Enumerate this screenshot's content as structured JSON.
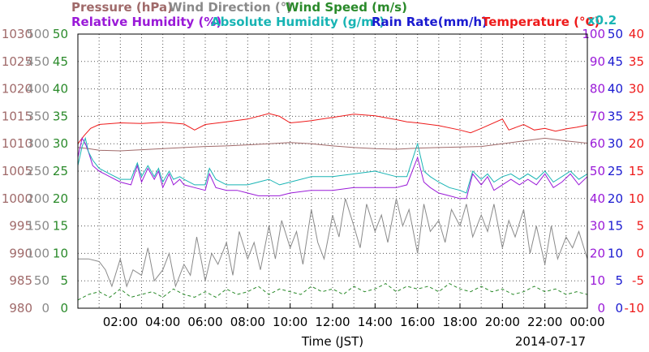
{
  "chart_data": {
    "type": "line",
    "title_lines": [
      [
        {
          "text": "Pressure (hPa)",
          "color": "#a06a6a"
        },
        {
          "text": "Wind Direction (°)",
          "color": "#8a8a8a"
        },
        {
          "text": "Wind Speed (m/s)",
          "color": "#2a8a2a"
        }
      ],
      [
        {
          "text": "Relative Humidity (%)",
          "color": "#9a1ad8"
        },
        {
          "text": "Absolute Humidity (g/m³)",
          "color": "#18b4b4"
        },
        {
          "text": "Rain Rate(mm/h)",
          "color": "#1a1ad0"
        },
        {
          "text": "Temperature (°C)",
          "color": "#ee1a1a"
        }
      ]
    ],
    "abs_humidity_scale_note": "x0.2",
    "xlabel": "Time (JST)",
    "date": "2014-07-17",
    "x_ticks": [
      "02:00",
      "04:00",
      "06:00",
      "08:00",
      "10:00",
      "12:00",
      "14:00",
      "16:00",
      "18:00",
      "20:00",
      "22:00",
      "00:00"
    ],
    "xlim_hours": [
      0,
      24
    ],
    "axes": {
      "pressure": {
        "color": "#a06a6a",
        "range": [
          980,
          1030
        ],
        "ticks": [
          "1030",
          "1025",
          "1020",
          "1015",
          "1010",
          "1005",
          "1000",
          "995",
          "990",
          "985",
          "980"
        ]
      },
      "wind_direction": {
        "color": "#8a8a8a",
        "range": [
          0,
          500
        ],
        "ticks": [
          "500",
          "450",
          "400",
          "350",
          "300",
          "250",
          "200",
          "150",
          "100",
          "50",
          "0"
        ]
      },
      "wind_speed": {
        "color": "#2a8a2a",
        "range": [
          0,
          50
        ],
        "ticks": [
          "50",
          "45",
          "40",
          "35",
          "30",
          "25",
          "20",
          "15",
          "10",
          "5",
          "0"
        ]
      },
      "humidity": {
        "color": "#9a1ad8",
        "range": [
          0,
          100
        ],
        "ticks": [
          "100",
          "90",
          "80",
          "70",
          "60",
          "50",
          "40",
          "30",
          "20",
          "10",
          "0"
        ]
      },
      "rain_rate": {
        "color": "#1a1ad0",
        "range": [
          0,
          50
        ],
        "ticks": [
          "50",
          "45",
          "40",
          "35",
          "30",
          "25",
          "20",
          "15",
          "10",
          "5",
          "0"
        ]
      },
      "temperature": {
        "color": "#ee1a1a",
        "range": [
          -10,
          40
        ],
        "ticks": [
          "40",
          "35",
          "30",
          "25",
          "20",
          "15",
          "10",
          "5",
          "0",
          "-5",
          "-10"
        ]
      }
    },
    "grid": true,
    "series": [
      {
        "name": "Temperature (°C)",
        "color": "#ee1a1a",
        "axis": "temperature",
        "x": [
          0,
          0.3,
          0.6,
          1,
          2,
          3,
          4,
          5,
          5.5,
          6,
          7,
          8,
          9,
          9.5,
          10,
          10.5,
          11,
          12,
          13,
          14,
          15,
          15.5,
          16,
          17,
          18,
          18.5,
          19,
          20,
          20.3,
          21,
          21.5,
          22,
          22.5,
          23,
          23.5,
          24
        ],
        "y": [
          20,
          21.5,
          22.8,
          23.5,
          23.8,
          23.7,
          23.9,
          23.6,
          22.5,
          23.5,
          24,
          24.5,
          25.5,
          25,
          23.8,
          24,
          24.2,
          24.8,
          25.4,
          25.1,
          24.4,
          24,
          23.8,
          23.3,
          22.5,
          22,
          22.8,
          24.5,
          22.5,
          23.5,
          22.5,
          22.8,
          22.3,
          22.7,
          23,
          23.4
        ]
      },
      {
        "name": "Pressure (hPa)",
        "color": "#a06a6a",
        "axis": "pressure",
        "x": [
          0,
          0.5,
          1,
          2,
          3,
          4,
          5,
          6,
          7,
          8,
          9,
          10,
          11,
          12,
          13,
          14,
          15,
          16,
          17,
          18,
          19,
          20,
          21,
          22,
          23,
          24
        ],
        "y": [
          1009.3,
          1009.1,
          1008.8,
          1008.7,
          1008.9,
          1009.1,
          1009.3,
          1009.5,
          1009.6,
          1009.8,
          1010,
          1010.2,
          1010,
          1009.6,
          1009.3,
          1009.1,
          1009,
          1009.2,
          1009.3,
          1009.4,
          1009.5,
          1010,
          1010.5,
          1011,
          1010.5,
          1010.1
        ]
      },
      {
        "name": "Relative Humidity (%)",
        "color": "#9a1ad8",
        "axis": "humidity",
        "x": [
          0,
          0.2,
          0.35,
          0.5,
          0.7,
          1,
          1.5,
          2,
          2.5,
          2.8,
          3,
          3.3,
          3.6,
          3.8,
          4,
          4.3,
          4.5,
          4.8,
          5,
          5.5,
          6,
          6.2,
          6.5,
          7,
          7.5,
          8,
          8.5,
          9,
          9.5,
          10,
          11,
          12,
          13,
          14,
          15,
          15.5,
          16,
          16.3,
          16.6,
          17,
          17.5,
          18,
          18.3,
          18.6,
          19,
          19.3,
          19.6,
          20,
          20.4,
          20.8,
          21.2,
          21.6,
          22,
          22.4,
          22.8,
          23.2,
          23.6,
          24
        ],
        "y": [
          55,
          62,
          60,
          57,
          52,
          50,
          48,
          46,
          45,
          52,
          46,
          51,
          47,
          50,
          44,
          49,
          45,
          47,
          45,
          44,
          43,
          49,
          44,
          43,
          43,
          42,
          41,
          41,
          41,
          42,
          43,
          43,
          44,
          44,
          44,
          45,
          55,
          46,
          44,
          42,
          41,
          40,
          40,
          49,
          45,
          48,
          43,
          45,
          47,
          45,
          47,
          45,
          49,
          44,
          46,
          49,
          45,
          48
        ]
      },
      {
        "name": "Absolute Humidity (g/m³)",
        "color": "#18b4b4",
        "axis": "humidity",
        "x": [
          0,
          0.2,
          0.35,
          0.5,
          0.7,
          1,
          1.5,
          2,
          2.5,
          2.8,
          3,
          3.3,
          3.6,
          3.8,
          4,
          4.3,
          4.5,
          4.8,
          5,
          5.5,
          6,
          6.2,
          6.5,
          7,
          7.5,
          8,
          8.5,
          9,
          9.5,
          10,
          11,
          12,
          13,
          14,
          15,
          15.5,
          16,
          16.3,
          16.6,
          17,
          17.5,
          18,
          18.3,
          18.6,
          19,
          19.3,
          19.6,
          20,
          20.4,
          20.8,
          21.2,
          21.6,
          22,
          22.4,
          22.8,
          23.2,
          23.6,
          24
        ],
        "y": [
          52,
          59,
          62,
          57,
          54,
          51,
          49,
          47,
          47,
          53,
          48,
          52,
          48,
          51,
          46,
          50,
          47,
          48,
          47,
          45,
          45,
          51,
          47,
          45,
          45,
          45,
          46,
          47,
          45,
          46,
          48,
          48,
          49,
          50,
          48,
          48,
          60,
          50,
          48,
          46,
          44,
          43,
          42,
          50,
          47,
          49,
          46,
          48,
          49,
          47,
          49,
          47,
          50,
          46,
          48,
          50,
          47,
          49
        ]
      },
      {
        "name": "Wind Direction (°)",
        "color": "#8a8a8a",
        "axis": "wind_direction",
        "x": [
          0,
          0.5,
          1,
          1.3,
          1.6,
          2,
          2.3,
          2.6,
          3,
          3.3,
          3.6,
          4,
          4.3,
          4.6,
          5,
          5.3,
          5.6,
          6,
          6.3,
          6.6,
          7,
          7.3,
          7.6,
          8,
          8.3,
          8.6,
          9,
          9.3,
          9.6,
          10,
          10.3,
          10.6,
          11,
          11.3,
          11.6,
          12,
          12.3,
          12.6,
          13,
          13.3,
          13.6,
          14,
          14.3,
          14.6,
          15,
          15.3,
          15.6,
          16,
          16.3,
          16.6,
          17,
          17.3,
          17.6,
          18,
          18.3,
          18.6,
          19,
          19.3,
          19.6,
          20,
          20.3,
          20.6,
          21,
          21.3,
          21.6,
          22,
          22.3,
          22.6,
          23,
          23.3,
          23.6,
          24
        ],
        "y": [
          90,
          90,
          85,
          70,
          40,
          90,
          40,
          70,
          60,
          110,
          50,
          70,
          100,
          40,
          80,
          60,
          130,
          50,
          100,
          80,
          120,
          60,
          140,
          90,
          120,
          70,
          150,
          90,
          160,
          110,
          140,
          80,
          180,
          120,
          90,
          170,
          130,
          200,
          150,
          110,
          190,
          140,
          170,
          120,
          200,
          150,
          180,
          100,
          190,
          140,
          160,
          120,
          180,
          150,
          190,
          130,
          170,
          140,
          190,
          110,
          160,
          130,
          180,
          100,
          150,
          80,
          150,
          90,
          130,
          110,
          140,
          90
        ]
      },
      {
        "name": "Wind Speed (m/s)",
        "color": "#2a8a2a",
        "axis": "wind_speed",
        "x": [
          0,
          0.5,
          1,
          1.5,
          2,
          2.5,
          3,
          3.5,
          4,
          4.5,
          5,
          5.5,
          6,
          6.5,
          7,
          7.5,
          8,
          8.5,
          9,
          9.5,
          10,
          10.5,
          11,
          11.5,
          12,
          12.5,
          13,
          13.5,
          14,
          14.5,
          15,
          15.5,
          16,
          16.5,
          17,
          17.5,
          18,
          18.5,
          19,
          19.5,
          20,
          20.5,
          21,
          21.5,
          22,
          22.5,
          23,
          23.5,
          24
        ],
        "y": [
          1.5,
          2.5,
          3,
          2,
          3.5,
          2,
          2.5,
          3,
          2,
          3.5,
          2.5,
          2,
          3,
          2,
          3.5,
          2.5,
          3,
          4,
          2.5,
          3.5,
          3,
          2.5,
          4,
          3,
          3.5,
          2.5,
          4,
          3,
          3.5,
          4.5,
          3,
          4,
          3.5,
          4,
          3,
          4.5,
          3.5,
          3,
          4,
          3,
          3.5,
          2.5,
          3,
          4,
          3,
          3.5,
          2.5,
          3,
          2.5
        ]
      },
      {
        "name": "Rain Rate(mm/h)",
        "color": "#1a1ad0",
        "axis": "rain_rate",
        "x": [
          0,
          24
        ],
        "y": [
          0,
          0
        ]
      }
    ]
  }
}
